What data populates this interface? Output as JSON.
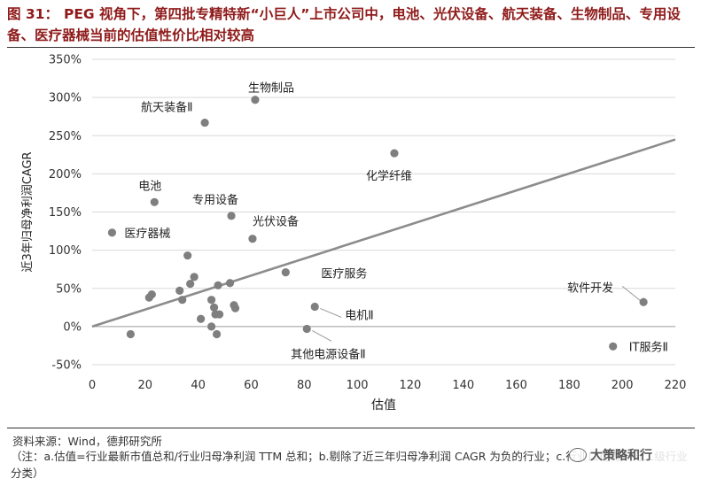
{
  "figure": {
    "number_label": "图 31：",
    "title": "PEG 视角下，第四批专精特新“小巨人”上市公司中，电池、光伏设备、航天装备、生物制品、专用设备、医疗器械当前的估值性价比相对较高"
  },
  "footer": {
    "source": "资料来源：Wind，德邦研究所",
    "note": "（注：a.估值=行业最新市值总和/行业归母净利润 TTM 总和；b.剔除了近三年归母净利润 CAGR 为负的行业；c.行业口径为申万二级行业分类）"
  },
  "watermark": {
    "text": "大策略和行"
  },
  "chart_data": {
    "type": "scatter",
    "xlabel": "估值",
    "ylabel": "近3年归母净利润CAGR",
    "xlim": [
      0,
      220
    ],
    "ylim": [
      -50,
      350
    ],
    "x_ticks": [
      0,
      20,
      40,
      60,
      80,
      100,
      120,
      140,
      160,
      180,
      200,
      220
    ],
    "y_ticks": [
      -50,
      0,
      50,
      100,
      150,
      200,
      250,
      300,
      350
    ],
    "y_tick_labels": [
      "-50%",
      "0%",
      "50%",
      "100%",
      "150%",
      "200%",
      "250%",
      "300%",
      "350%"
    ],
    "grid": "horizontal",
    "trendline": {
      "x": [
        0,
        220
      ],
      "y": [
        0,
        245
      ]
    },
    "colors": {
      "point": "#7f7f7f",
      "line": "#8c8c8c",
      "grid": "#d9d9d9"
    },
    "points": [
      {
        "x": 61.5,
        "y": 297,
        "label": "生物制品"
      },
      {
        "x": 42.5,
        "y": 267,
        "label": "航天装备Ⅱ"
      },
      {
        "x": 114,
        "y": 227,
        "label": "化学纤维"
      },
      {
        "x": 23.5,
        "y": 163,
        "label": "电池"
      },
      {
        "x": 52.5,
        "y": 145,
        "label": "专用设备"
      },
      {
        "x": 60.5,
        "y": 115,
        "label": "光伏设备"
      },
      {
        "x": 7.5,
        "y": 123,
        "label": "医疗器械"
      },
      {
        "x": 73,
        "y": 71,
        "label": "医疗服务"
      },
      {
        "x": 208,
        "y": 32,
        "label": "软件开发"
      },
      {
        "x": 84,
        "y": 26,
        "label": "电机Ⅱ"
      },
      {
        "x": 81,
        "y": -3,
        "label": "其他电源设备Ⅱ"
      },
      {
        "x": 196.5,
        "y": -26,
        "label": "IT服务Ⅱ"
      },
      {
        "x": 36,
        "y": 93,
        "label": ""
      },
      {
        "x": 38.5,
        "y": 65,
        "label": ""
      },
      {
        "x": 37,
        "y": 56,
        "label": ""
      },
      {
        "x": 47.5,
        "y": 54,
        "label": ""
      },
      {
        "x": 52,
        "y": 57,
        "label": ""
      },
      {
        "x": 33,
        "y": 47,
        "label": ""
      },
      {
        "x": 22.5,
        "y": 42,
        "label": ""
      },
      {
        "x": 21.5,
        "y": 38,
        "label": ""
      },
      {
        "x": 34,
        "y": 35,
        "label": ""
      },
      {
        "x": 45,
        "y": 35,
        "label": ""
      },
      {
        "x": 53.5,
        "y": 28,
        "label": ""
      },
      {
        "x": 54,
        "y": 24,
        "label": ""
      },
      {
        "x": 46,
        "y": 25,
        "label": ""
      },
      {
        "x": 46.5,
        "y": 16,
        "label": ""
      },
      {
        "x": 48,
        "y": 16,
        "label": ""
      },
      {
        "x": 41,
        "y": 10,
        "label": ""
      },
      {
        "x": 45,
        "y": 0,
        "label": ""
      },
      {
        "x": 47,
        "y": -10,
        "label": ""
      },
      {
        "x": 14.5,
        "y": -10,
        "label": ""
      }
    ]
  }
}
